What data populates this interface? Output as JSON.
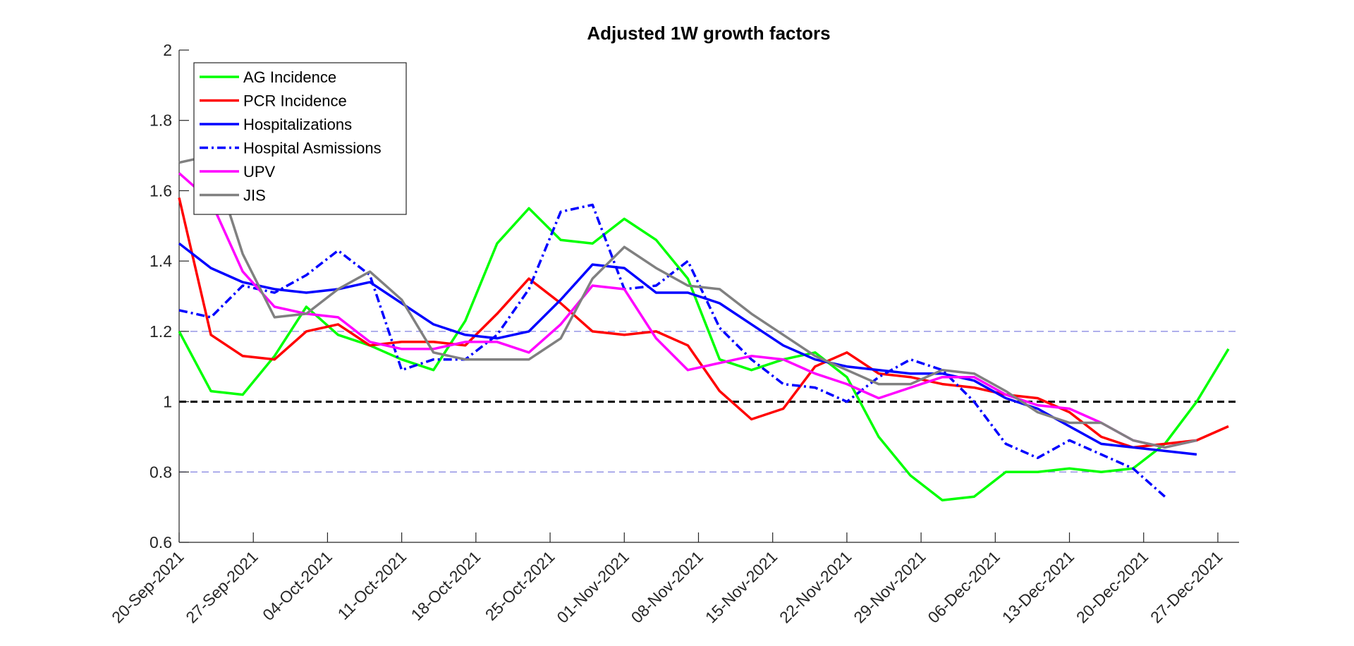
{
  "chart_data": {
    "type": "line",
    "title": "Adjusted 1W growth factors",
    "x": [
      "2021-09-20",
      "2021-09-23",
      "2021-09-26",
      "2021-09-29",
      "2021-10-02",
      "2021-10-05",
      "2021-10-08",
      "2021-10-11",
      "2021-10-14",
      "2021-10-17",
      "2021-10-20",
      "2021-10-23",
      "2021-10-26",
      "2021-10-29",
      "2021-11-01",
      "2021-11-04",
      "2021-11-07",
      "2021-11-10",
      "2021-11-13",
      "2021-11-16",
      "2021-11-19",
      "2021-11-22",
      "2021-11-25",
      "2021-11-28",
      "2021-12-01",
      "2021-12-04",
      "2021-12-07",
      "2021-12-10",
      "2021-12-13",
      "2021-12-16",
      "2021-12-19",
      "2021-12-22",
      "2021-12-25",
      "2021-12-28"
    ],
    "series": [
      {
        "name": "AG Incidence",
        "color": "#00ff00",
        "linestyle": "solid",
        "values": [
          1.2,
          1.03,
          1.02,
          1.13,
          1.27,
          1.19,
          1.16,
          1.12,
          1.09,
          1.23,
          1.45,
          1.55,
          1.46,
          1.45,
          1.52,
          1.46,
          1.35,
          1.12,
          1.09,
          1.12,
          1.14,
          1.07,
          0.9,
          0.79,
          0.72,
          0.73,
          0.8,
          0.8,
          0.81,
          0.8,
          0.81,
          0.88,
          1.0,
          1.15
        ]
      },
      {
        "name": "PCR Incidence",
        "color": "#ff0000",
        "linestyle": "solid",
        "values": [
          1.58,
          1.19,
          1.13,
          1.12,
          1.2,
          1.22,
          1.16,
          1.17,
          1.17,
          1.16,
          1.25,
          1.35,
          1.28,
          1.2,
          1.19,
          1.2,
          1.16,
          1.03,
          0.95,
          0.98,
          1.1,
          1.14,
          1.08,
          1.07,
          1.05,
          1.04,
          1.02,
          1.01,
          0.97,
          0.9,
          0.87,
          0.88,
          0.89,
          0.93
        ]
      },
      {
        "name": "Hospitalizations",
        "color": "#0000ff",
        "linestyle": "solid",
        "values": [
          1.45,
          1.38,
          1.34,
          1.32,
          1.31,
          1.32,
          1.34,
          1.28,
          1.22,
          1.19,
          1.18,
          1.2,
          1.29,
          1.39,
          1.38,
          1.31,
          1.31,
          1.28,
          1.22,
          1.16,
          1.12,
          1.1,
          1.09,
          1.08,
          1.08,
          1.06,
          1.01,
          0.98,
          0.93,
          0.88,
          0.87,
          0.86,
          0.85,
          null
        ]
      },
      {
        "name": "Hospital Asmissions",
        "color": "#0000ff",
        "linestyle": "dashdot",
        "values": [
          1.26,
          1.24,
          1.33,
          1.31,
          1.36,
          1.43,
          1.36,
          1.09,
          1.12,
          1.12,
          1.19,
          1.32,
          1.54,
          1.56,
          1.32,
          1.33,
          1.4,
          1.21,
          1.12,
          1.05,
          1.04,
          1.0,
          1.07,
          1.12,
          1.09,
          1.0,
          0.88,
          0.84,
          0.89,
          0.85,
          0.81,
          0.73,
          null,
          null
        ]
      },
      {
        "name": "UPV",
        "color": "#ff00ff",
        "linestyle": "solid",
        "values": [
          1.65,
          1.57,
          1.37,
          1.27,
          1.25,
          1.24,
          1.17,
          1.15,
          1.15,
          1.17,
          1.17,
          1.14,
          1.22,
          1.33,
          1.32,
          1.18,
          1.09,
          1.11,
          1.13,
          1.12,
          1.08,
          1.05,
          1.01,
          1.04,
          1.07,
          1.07,
          1.02,
          0.99,
          0.98,
          0.94,
          0.89,
          0.87,
          0.89,
          null
        ]
      },
      {
        "name": "JIS",
        "color": "#808080",
        "linestyle": "solid",
        "values": [
          1.68,
          1.7,
          1.42,
          1.24,
          1.25,
          1.32,
          1.37,
          1.29,
          1.14,
          1.12,
          1.12,
          1.12,
          1.18,
          1.35,
          1.44,
          1.38,
          1.33,
          1.32,
          1.25,
          1.19,
          1.13,
          1.09,
          1.05,
          1.05,
          1.09,
          1.08,
          1.03,
          0.97,
          0.94,
          0.94,
          0.89,
          0.87,
          0.89,
          null
        ]
      }
    ],
    "reference_lines": [
      {
        "value": 1.2,
        "color": "#8080e0",
        "linestyle": "dashed"
      },
      {
        "value": 1,
        "color": "#000000",
        "linestyle": "dashed"
      },
      {
        "value": 0.8,
        "color": "#8080e0",
        "linestyle": "dashed"
      }
    ],
    "xlim": [
      "2021-09-20",
      "2021-12-29"
    ],
    "xticks": [
      {
        "value": "2021-09-20",
        "label": "20-Sep-2021"
      },
      {
        "value": "2021-09-27",
        "label": "27-Sep-2021"
      },
      {
        "value": "2021-10-04",
        "label": "04-Oct-2021"
      },
      {
        "value": "2021-10-11",
        "label": "11-Oct-2021"
      },
      {
        "value": "2021-10-18",
        "label": "18-Oct-2021"
      },
      {
        "value": "2021-10-25",
        "label": "25-Oct-2021"
      },
      {
        "value": "2021-11-01",
        "label": "01-Nov-2021"
      },
      {
        "value": "2021-11-08",
        "label": "08-Nov-2021"
      },
      {
        "value": "2021-11-15",
        "label": "15-Nov-2021"
      },
      {
        "value": "2021-11-22",
        "label": "22-Nov-2021"
      },
      {
        "value": "2021-11-29",
        "label": "29-Nov-2021"
      },
      {
        "value": "2021-12-06",
        "label": "06-Dec-2021"
      },
      {
        "value": "2021-12-13",
        "label": "13-Dec-2021"
      },
      {
        "value": "2021-12-20",
        "label": "20-Dec-2021"
      },
      {
        "value": "2021-12-27",
        "label": "27-Dec-2021"
      }
    ],
    "ylim": [
      0.6,
      2
    ],
    "yticks": [
      0.6,
      0.8,
      1,
      1.2,
      1.4,
      1.6,
      1.8,
      2
    ],
    "grid": false,
    "legend": "upper left"
  }
}
